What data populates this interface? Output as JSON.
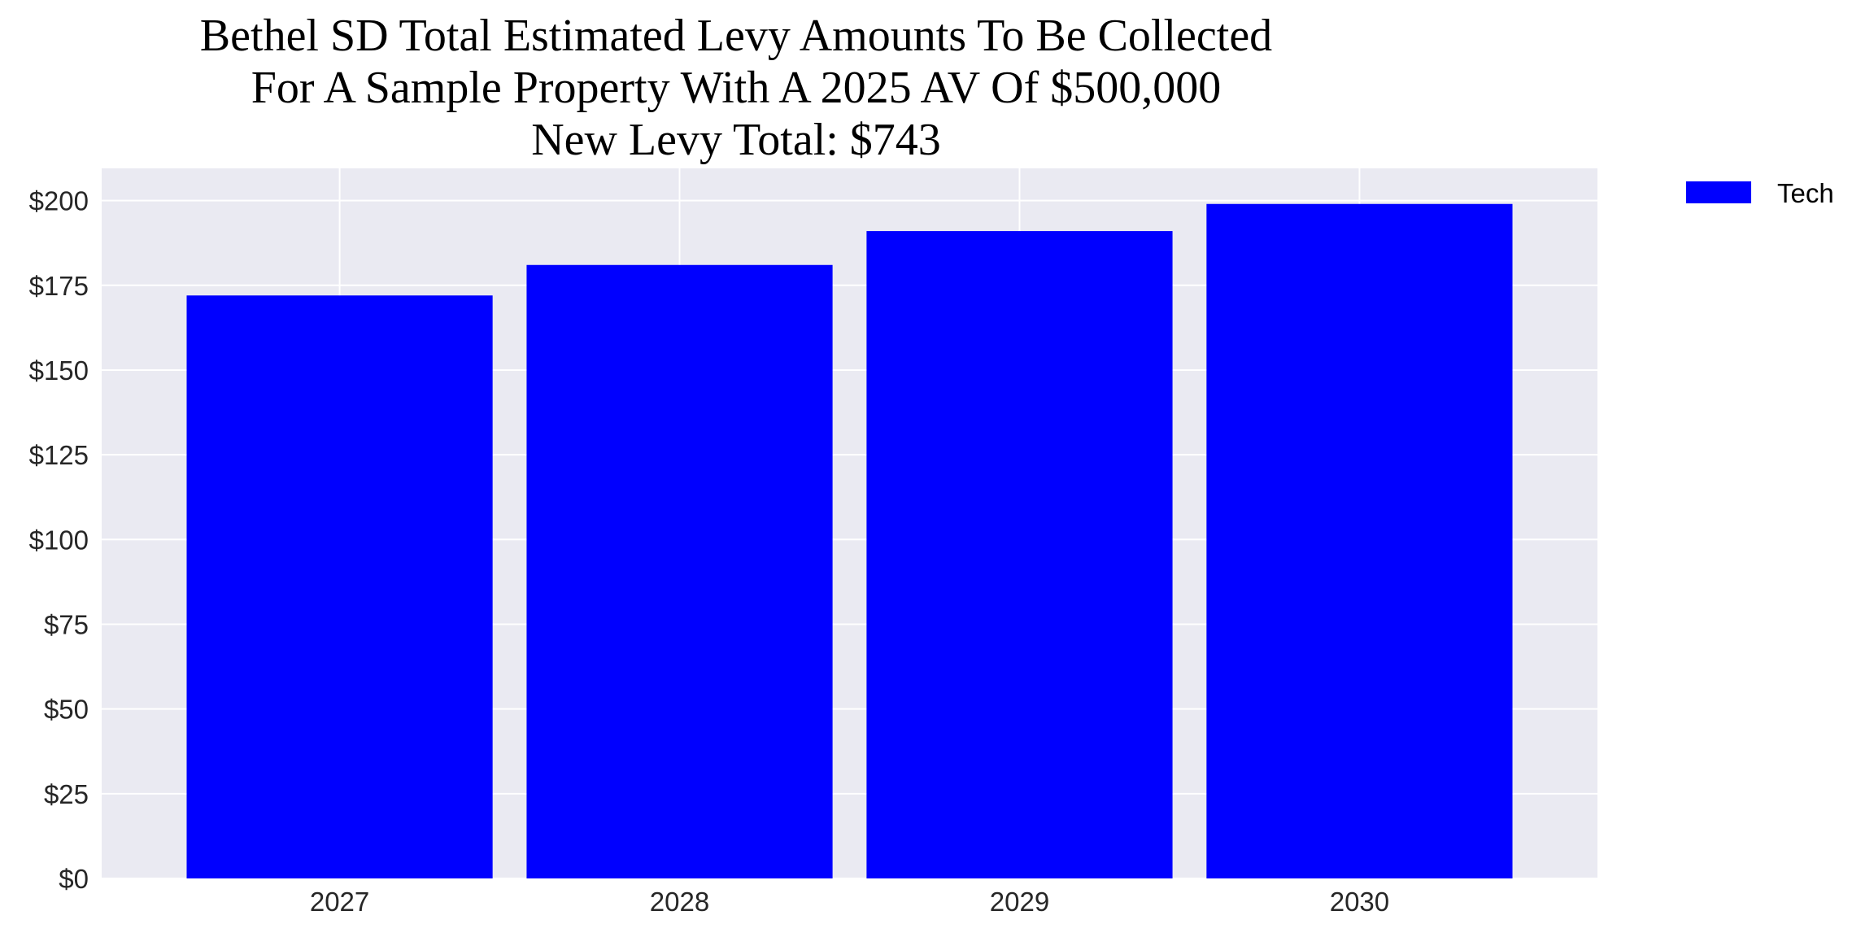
{
  "chart_data": {
    "type": "bar",
    "title_lines": [
      "Bethel SD Total Estimated Levy Amounts To Be Collected",
      "For A Sample Property With A 2025 AV Of $500,000",
      "New Levy Total: $743"
    ],
    "categories": [
      "2027",
      "2028",
      "2029",
      "2030"
    ],
    "series": [
      {
        "name": "Tech",
        "values": [
          172,
          181,
          191,
          199
        ],
        "color": "#0000ff"
      }
    ],
    "xlabel": "",
    "ylabel": "",
    "ylim": [
      0,
      209.5
    ],
    "yticks": [
      0,
      25,
      50,
      75,
      100,
      125,
      150,
      175,
      200
    ],
    "ytick_labels": [
      "$0",
      "$25",
      "$50",
      "$75",
      "$100",
      "$125",
      "$150",
      "$175",
      "$200"
    ],
    "grid": true,
    "background": "#eaeaf2",
    "legend_placement": "outside-top-right"
  }
}
